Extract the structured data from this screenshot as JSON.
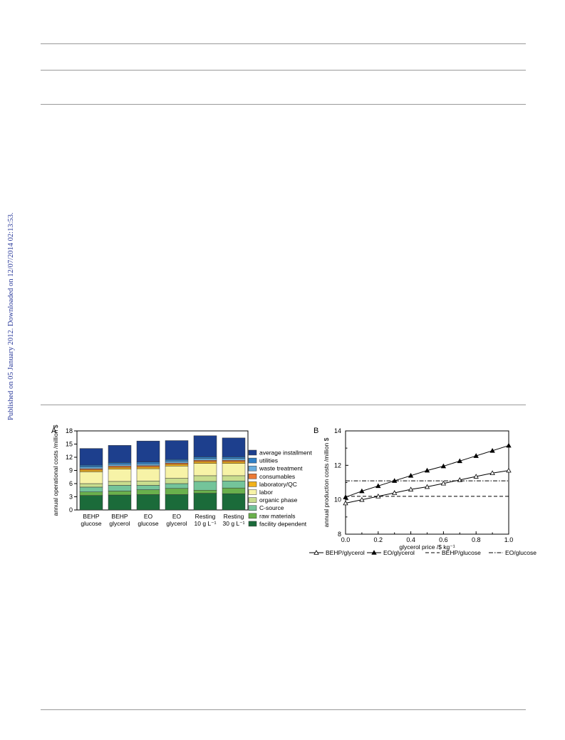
{
  "sidenote": "Published on 05 January 2012. Downloaded on 12/07/2014 02:13:53.",
  "chart_data": [
    {
      "type": "bar",
      "panel_label": "A",
      "stacked": true,
      "categories": [
        [
          "BEHP",
          "glucose"
        ],
        [
          "BEHP",
          "glycerol"
        ],
        [
          "EO",
          "glucose"
        ],
        [
          "EO",
          "glycerol"
        ],
        [
          "Resting",
          "10 g L⁻¹"
        ],
        [
          "Resting",
          "30 g L⁻¹"
        ]
      ],
      "ylabel": "annual operational costs /million $",
      "ylim": [
        0,
        18
      ],
      "yticks": [
        0,
        3,
        6,
        9,
        12,
        15,
        18
      ],
      "legend_position": "right",
      "series": [
        {
          "name": "facility dependent",
          "color": "#1b6b3a",
          "values": [
            3.3,
            3.4,
            3.5,
            3.5,
            3.8,
            3.7
          ]
        },
        {
          "name": "raw materials",
          "color": "#6ab04c",
          "values": [
            0.8,
            0.9,
            1.1,
            1.4,
            0.7,
            1.3
          ]
        },
        {
          "name": "C-source",
          "color": "#74c49a",
          "values": [
            1.1,
            1.3,
            1.0,
            1.1,
            2.0,
            1.6
          ]
        },
        {
          "name": "organic phase",
          "color": "#c9dd8e",
          "values": [
            0.8,
            0.9,
            1.0,
            1.2,
            1.3,
            1.2
          ]
        },
        {
          "name": "labor",
          "color": "#f7f3a7",
          "values": [
            2.7,
            2.8,
            2.8,
            2.8,
            2.8,
            2.8
          ]
        },
        {
          "name": "laboratory/QC",
          "color": "#f2b21b",
          "values": [
            0.4,
            0.4,
            0.4,
            0.4,
            0.4,
            0.4
          ]
        },
        {
          "name": "consumables",
          "color": "#ec7a35",
          "values": [
            0.3,
            0.3,
            0.3,
            0.3,
            0.3,
            0.3
          ]
        },
        {
          "name": "waste treatment",
          "color": "#6aaede",
          "values": [
            0.4,
            0.4,
            0.4,
            0.4,
            0.4,
            0.4
          ]
        },
        {
          "name": "utilities",
          "color": "#2f7fc6",
          "values": [
            0.4,
            0.4,
            0.4,
            0.4,
            0.4,
            0.4
          ]
        },
        {
          "name": "average installment",
          "color": "#1d3f8d",
          "values": [
            3.8,
            3.9,
            4.8,
            4.3,
            4.8,
            4.3
          ]
        }
      ]
    },
    {
      "type": "line",
      "panel_label": "B",
      "xlabel": "glycerol price /$ kg⁻¹",
      "ylabel": "annual production costs /million $",
      "xlim": [
        0.0,
        1.0
      ],
      "ylim": [
        8,
        14
      ],
      "xticks": [
        0.0,
        0.2,
        0.4,
        0.6,
        0.8,
        1.0
      ],
      "yticks": [
        8,
        10,
        12,
        14
      ],
      "legend_position": "bottom",
      "series": [
        {
          "name": "BEHP/glycerol",
          "style": "open-triangle",
          "x": [
            0.0,
            0.1,
            0.2,
            0.3,
            0.4,
            0.5,
            0.6,
            0.7,
            0.8,
            0.9,
            1.0
          ],
          "y": [
            9.8,
            10.0,
            10.2,
            10.4,
            10.6,
            10.75,
            10.95,
            11.15,
            11.35,
            11.55,
            11.7
          ]
        },
        {
          "name": "EO/glycerol",
          "style": "filled-triangle",
          "x": [
            0.0,
            0.1,
            0.2,
            0.3,
            0.4,
            0.5,
            0.6,
            0.7,
            0.8,
            0.9,
            1.0
          ],
          "y": [
            10.15,
            10.5,
            10.8,
            11.1,
            11.4,
            11.7,
            11.95,
            12.25,
            12.55,
            12.85,
            13.15
          ]
        },
        {
          "name": "BEHP/glucose",
          "style": "dashed",
          "x": [
            0.0,
            1.0
          ],
          "y": [
            10.2,
            10.2
          ]
        },
        {
          "name": "EO/glucose",
          "style": "dash-dot",
          "x": [
            0.0,
            1.0
          ],
          "y": [
            11.1,
            11.1
          ]
        }
      ]
    }
  ]
}
